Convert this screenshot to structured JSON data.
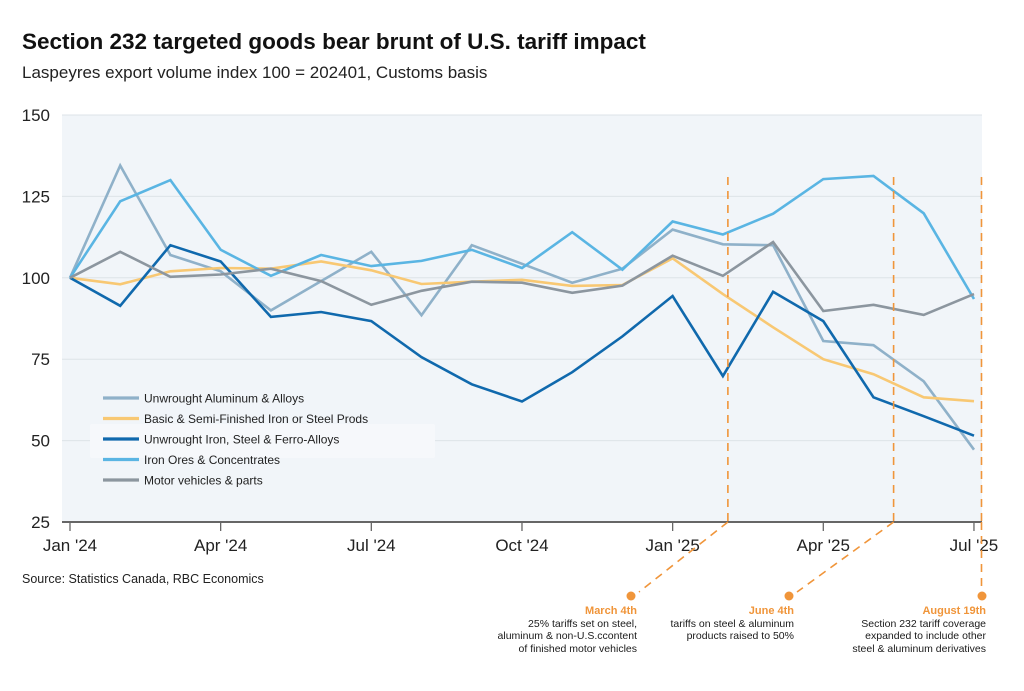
{
  "header": {
    "title": "Section 232 targeted goods bear brunt of U.S. tariff impact",
    "subtitle": "Laspeyres export volume index 100 = 202401, Customs basis"
  },
  "footer": {
    "source": "Source: Statistics Canada, RBC Economics"
  },
  "annotations": [
    {
      "date": "March 4th",
      "lines": [
        "25% tariffs set on steel,",
        "aluminum & non-U.S.ccontent",
        "of finished motor vehicles"
      ],
      "x_month_index": 13.1
    },
    {
      "date": "June 4th",
      "lines": [
        "tariffs on steel & aluminum",
        "products raised to 50%"
      ],
      "x_month_index": 16.4
    },
    {
      "date": "August 19th",
      "lines": [
        "Section 232 tariff coverage",
        "expanded to include other",
        "steel & aluminum derivatives"
      ],
      "x_month_index": 18.15
    }
  ],
  "colors": {
    "annotation": "#f0953a",
    "plot_bg": "#f1f5f9",
    "grid": "#dde3e8",
    "axis": "#666666"
  },
  "chart_data": {
    "type": "line",
    "title": "Section 232 targeted goods bear brunt of U.S. tariff impact",
    "subtitle": "Laspeyres export volume index 100 = 202401, Customs basis",
    "xlabel": "",
    "ylabel": "",
    "ylim": [
      25,
      150
    ],
    "yticks": [
      25,
      50,
      75,
      100,
      125,
      150
    ],
    "grid": true,
    "legend_position": "lower-left",
    "x": [
      "Jan '24",
      "Feb '24",
      "Mar '24",
      "Apr '24",
      "May '24",
      "Jun '24",
      "Jul '24",
      "Aug '24",
      "Sep '24",
      "Oct '24",
      "Nov '24",
      "Dec '24",
      "Jan '25",
      "Feb '25",
      "Mar '25",
      "Apr '25",
      "May '25",
      "Jun '25",
      "Jul '25"
    ],
    "xtick_labels": [
      {
        "index": 0,
        "label": "Jan '24"
      },
      {
        "index": 3,
        "label": "Apr '24"
      },
      {
        "index": 6,
        "label": "Jul '24"
      },
      {
        "index": 9,
        "label": "Oct '24"
      },
      {
        "index": 12,
        "label": "Jan '25"
      },
      {
        "index": 15,
        "label": "Apr '25"
      },
      {
        "index": 18,
        "label": "Jul '25"
      }
    ],
    "series": [
      {
        "name": "Unwrought Aluminum & Alloys",
        "color": "#8fb1c9",
        "values": [
          100,
          134.5,
          107,
          102,
          90,
          99,
          108,
          88.5,
          110,
          104.3,
          98.5,
          102.8,
          114.8,
          110.3,
          110,
          80.6,
          79.3,
          68.2,
          47.2
        ]
      },
      {
        "name": "Basic & Semi-Finished Iron or Steel Prods",
        "color": "#f8c873",
        "values": [
          100,
          98,
          102,
          103,
          102.8,
          105,
          102.3,
          98.1,
          98.8,
          99.4,
          97.5,
          97.8,
          106,
          95,
          84.8,
          75,
          70.4,
          63.3,
          62.1
        ]
      },
      {
        "name": "Unwrought Iron, Steel & Ferro-Alloys",
        "color": "#1069ad",
        "values": [
          100,
          91.4,
          110,
          105,
          88,
          89.5,
          86.7,
          75.6,
          67.3,
          62,
          71,
          82,
          94.4,
          69.8,
          95.7,
          86.7,
          63.3,
          57.5,
          51.5
        ]
      },
      {
        "name": "Iron Ores & Concentrates",
        "color": "#5ab5e3",
        "values": [
          100,
          123.5,
          130,
          108.6,
          100.6,
          107,
          103.6,
          105.2,
          108.6,
          103,
          114,
          102.5,
          117.3,
          113.3,
          119.7,
          130.3,
          131.3,
          119.8,
          93.5
        ]
      },
      {
        "name": "Motor vehicles & parts",
        "color": "#8c969f",
        "values": [
          100,
          108,
          100.3,
          101,
          102.8,
          99,
          91.7,
          96,
          98.8,
          98.5,
          95.4,
          97.6,
          106.8,
          100.6,
          111,
          89.8,
          91.7,
          88.6,
          95
        ]
      }
    ]
  }
}
